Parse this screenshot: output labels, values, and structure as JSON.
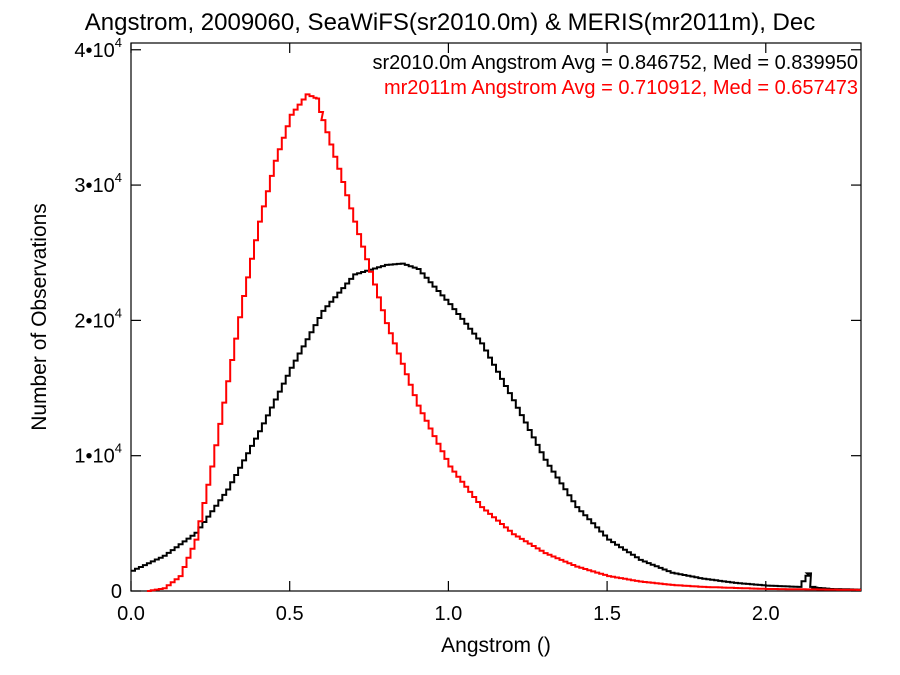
{
  "chart_data": {
    "type": "line",
    "title": "Angstrom, 2009060, SeaWiFS(sr2010.0m) & MERIS(mr2011m), Dec",
    "xlabel": "Angstrom ()",
    "ylabel": "Number of Observations",
    "xlim": [
      0.0,
      2.3
    ],
    "ylim": [
      0,
      40500
    ],
    "xticks": [
      {
        "value": 0.0,
        "label": "0.0"
      },
      {
        "value": 0.5,
        "label": "0.5"
      },
      {
        "value": 1.0,
        "label": "1.0"
      },
      {
        "value": 1.5,
        "label": "1.5"
      },
      {
        "value": 2.0,
        "label": "2.0"
      }
    ],
    "yticks": [
      {
        "value": 0,
        "label": "0",
        "exp": ""
      },
      {
        "value": 10000,
        "label": "1•10",
        "exp": "4"
      },
      {
        "value": 20000,
        "label": "2•10",
        "exp": "4"
      },
      {
        "value": 30000,
        "label": "3•10",
        "exp": "4"
      },
      {
        "value": 40000,
        "label": "4•10",
        "exp": "4"
      }
    ],
    "legend_position": "top-right",
    "grid": false,
    "series": [
      {
        "name": "sr2010.0m Angstrom Avg = 0.846752, Med = 0.839950",
        "color": "#000000",
        "step": "histogram",
        "x": [
          0.0,
          0.1,
          0.2,
          0.3,
          0.4,
          0.5,
          0.6,
          0.7,
          0.8,
          0.85,
          0.9,
          1.0,
          1.1,
          1.2,
          1.3,
          1.4,
          1.5,
          1.6,
          1.7,
          1.8,
          1.9,
          2.0,
          2.1,
          2.13,
          2.14,
          2.15,
          2.2,
          2.3
        ],
        "y": [
          1500,
          2600,
          4300,
          7500,
          11800,
          16500,
          20700,
          23400,
          24100,
          24200,
          23800,
          21200,
          18300,
          14100,
          9700,
          6200,
          3800,
          2300,
          1350,
          900,
          600,
          400,
          300,
          1300,
          300,
          250,
          150,
          100
        ]
      },
      {
        "name": "mr2011m Angstrom Avg = 0.710912, Med = 0.657473",
        "color": "#ff0000",
        "step": "histogram",
        "x": [
          0.05,
          0.1,
          0.15,
          0.2,
          0.25,
          0.3,
          0.35,
          0.4,
          0.45,
          0.5,
          0.55,
          0.58,
          0.6,
          0.65,
          0.7,
          0.75,
          0.8,
          0.85,
          0.9,
          1.0,
          1.1,
          1.2,
          1.3,
          1.4,
          1.5,
          1.6,
          1.7,
          1.8,
          2.0,
          2.3
        ],
        "y": [
          0,
          200,
          1100,
          3800,
          9200,
          15500,
          21800,
          27300,
          31800,
          35200,
          36700,
          36400,
          34800,
          31200,
          27300,
          23600,
          19800,
          16800,
          13700,
          9200,
          6200,
          4200,
          2800,
          1800,
          1100,
          700,
          450,
          300,
          150,
          80
        ]
      }
    ]
  }
}
